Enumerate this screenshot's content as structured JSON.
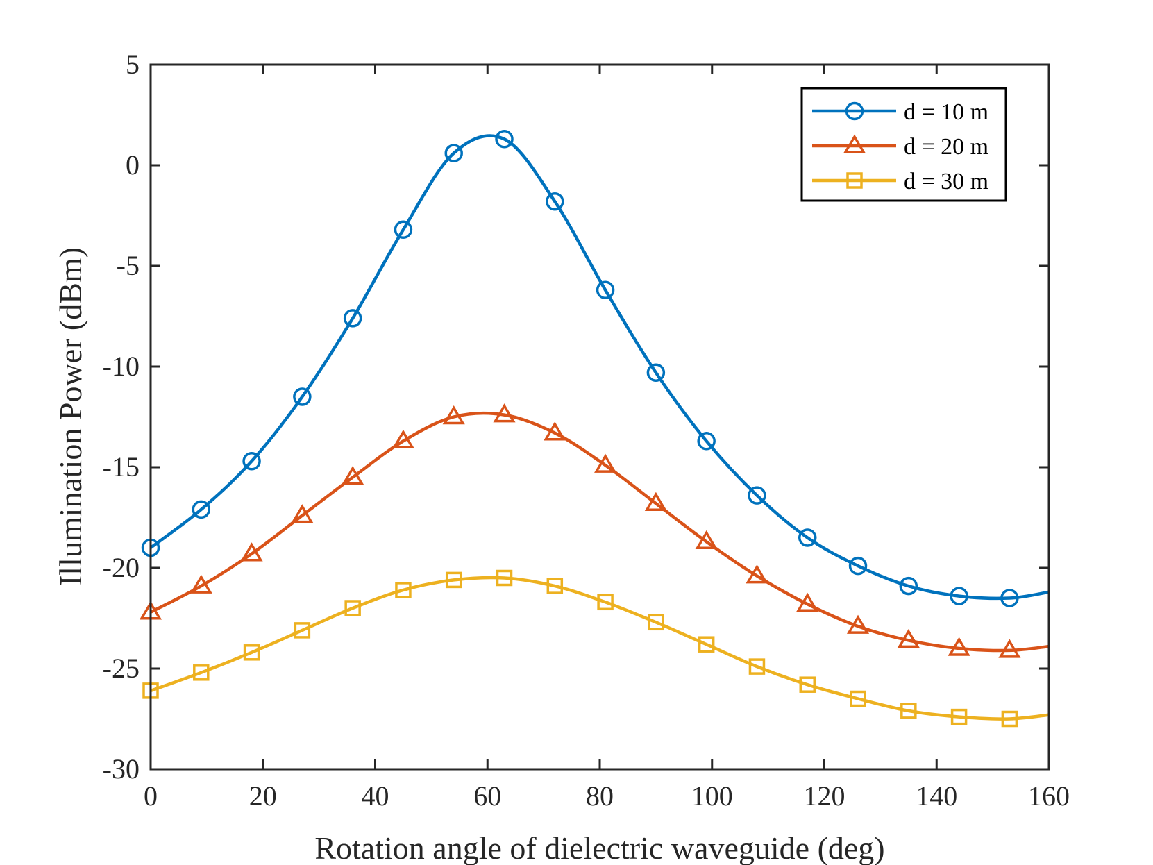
{
  "chart_data": {
    "type": "line",
    "title": "",
    "xlabel": "Rotation angle of dielectric waveguide (deg)",
    "ylabel": "Illumination Power (dBm)",
    "xlim": [
      0,
      160
    ],
    "ylim": [
      -30,
      5
    ],
    "xticks": [
      0,
      20,
      40,
      60,
      80,
      100,
      120,
      140,
      160
    ],
    "yticks": [
      5,
      0,
      -5,
      -10,
      -15,
      -20,
      -25,
      -30
    ],
    "xtick_labels": [
      "0",
      "20",
      "40",
      "60",
      "80",
      "100",
      "120",
      "140",
      "160"
    ],
    "ytick_labels": [
      "5",
      "0",
      "-5",
      "-10",
      "-15",
      "-20",
      "-25",
      "-30"
    ],
    "grid": false,
    "legend_position": "top-right",
    "x": [
      0,
      9,
      18,
      27,
      36,
      45,
      54,
      63,
      72,
      81,
      90,
      99,
      108,
      117,
      126,
      135,
      144,
      153,
      160
    ],
    "marker_count": 18,
    "series": [
      {
        "name": "d = 10 m",
        "color": "#0072BD",
        "marker": "circle",
        "values": [
          -19.0,
          -17.1,
          -14.7,
          -11.5,
          -7.6,
          -3.2,
          0.6,
          1.3,
          -1.8,
          -6.2,
          -10.3,
          -13.7,
          -16.4,
          -18.5,
          -19.9,
          -20.9,
          -21.4,
          -21.5,
          -21.2
        ]
      },
      {
        "name": "d = 20 m",
        "color": "#D95319",
        "marker": "triangle",
        "values": [
          -22.2,
          -20.9,
          -19.3,
          -17.4,
          -15.5,
          -13.7,
          -12.5,
          -12.4,
          -13.3,
          -14.9,
          -16.8,
          -18.7,
          -20.4,
          -21.8,
          -22.9,
          -23.6,
          -24.0,
          -24.1,
          -23.9
        ]
      },
      {
        "name": "d = 30 m",
        "color": "#EDB120",
        "marker": "square",
        "values": [
          -26.1,
          -25.2,
          -24.2,
          -23.1,
          -22.0,
          -21.1,
          -20.6,
          -20.5,
          -20.9,
          -21.7,
          -22.7,
          -23.8,
          -24.9,
          -25.8,
          -26.5,
          -27.1,
          -27.4,
          -27.5,
          -27.3
        ]
      }
    ]
  }
}
